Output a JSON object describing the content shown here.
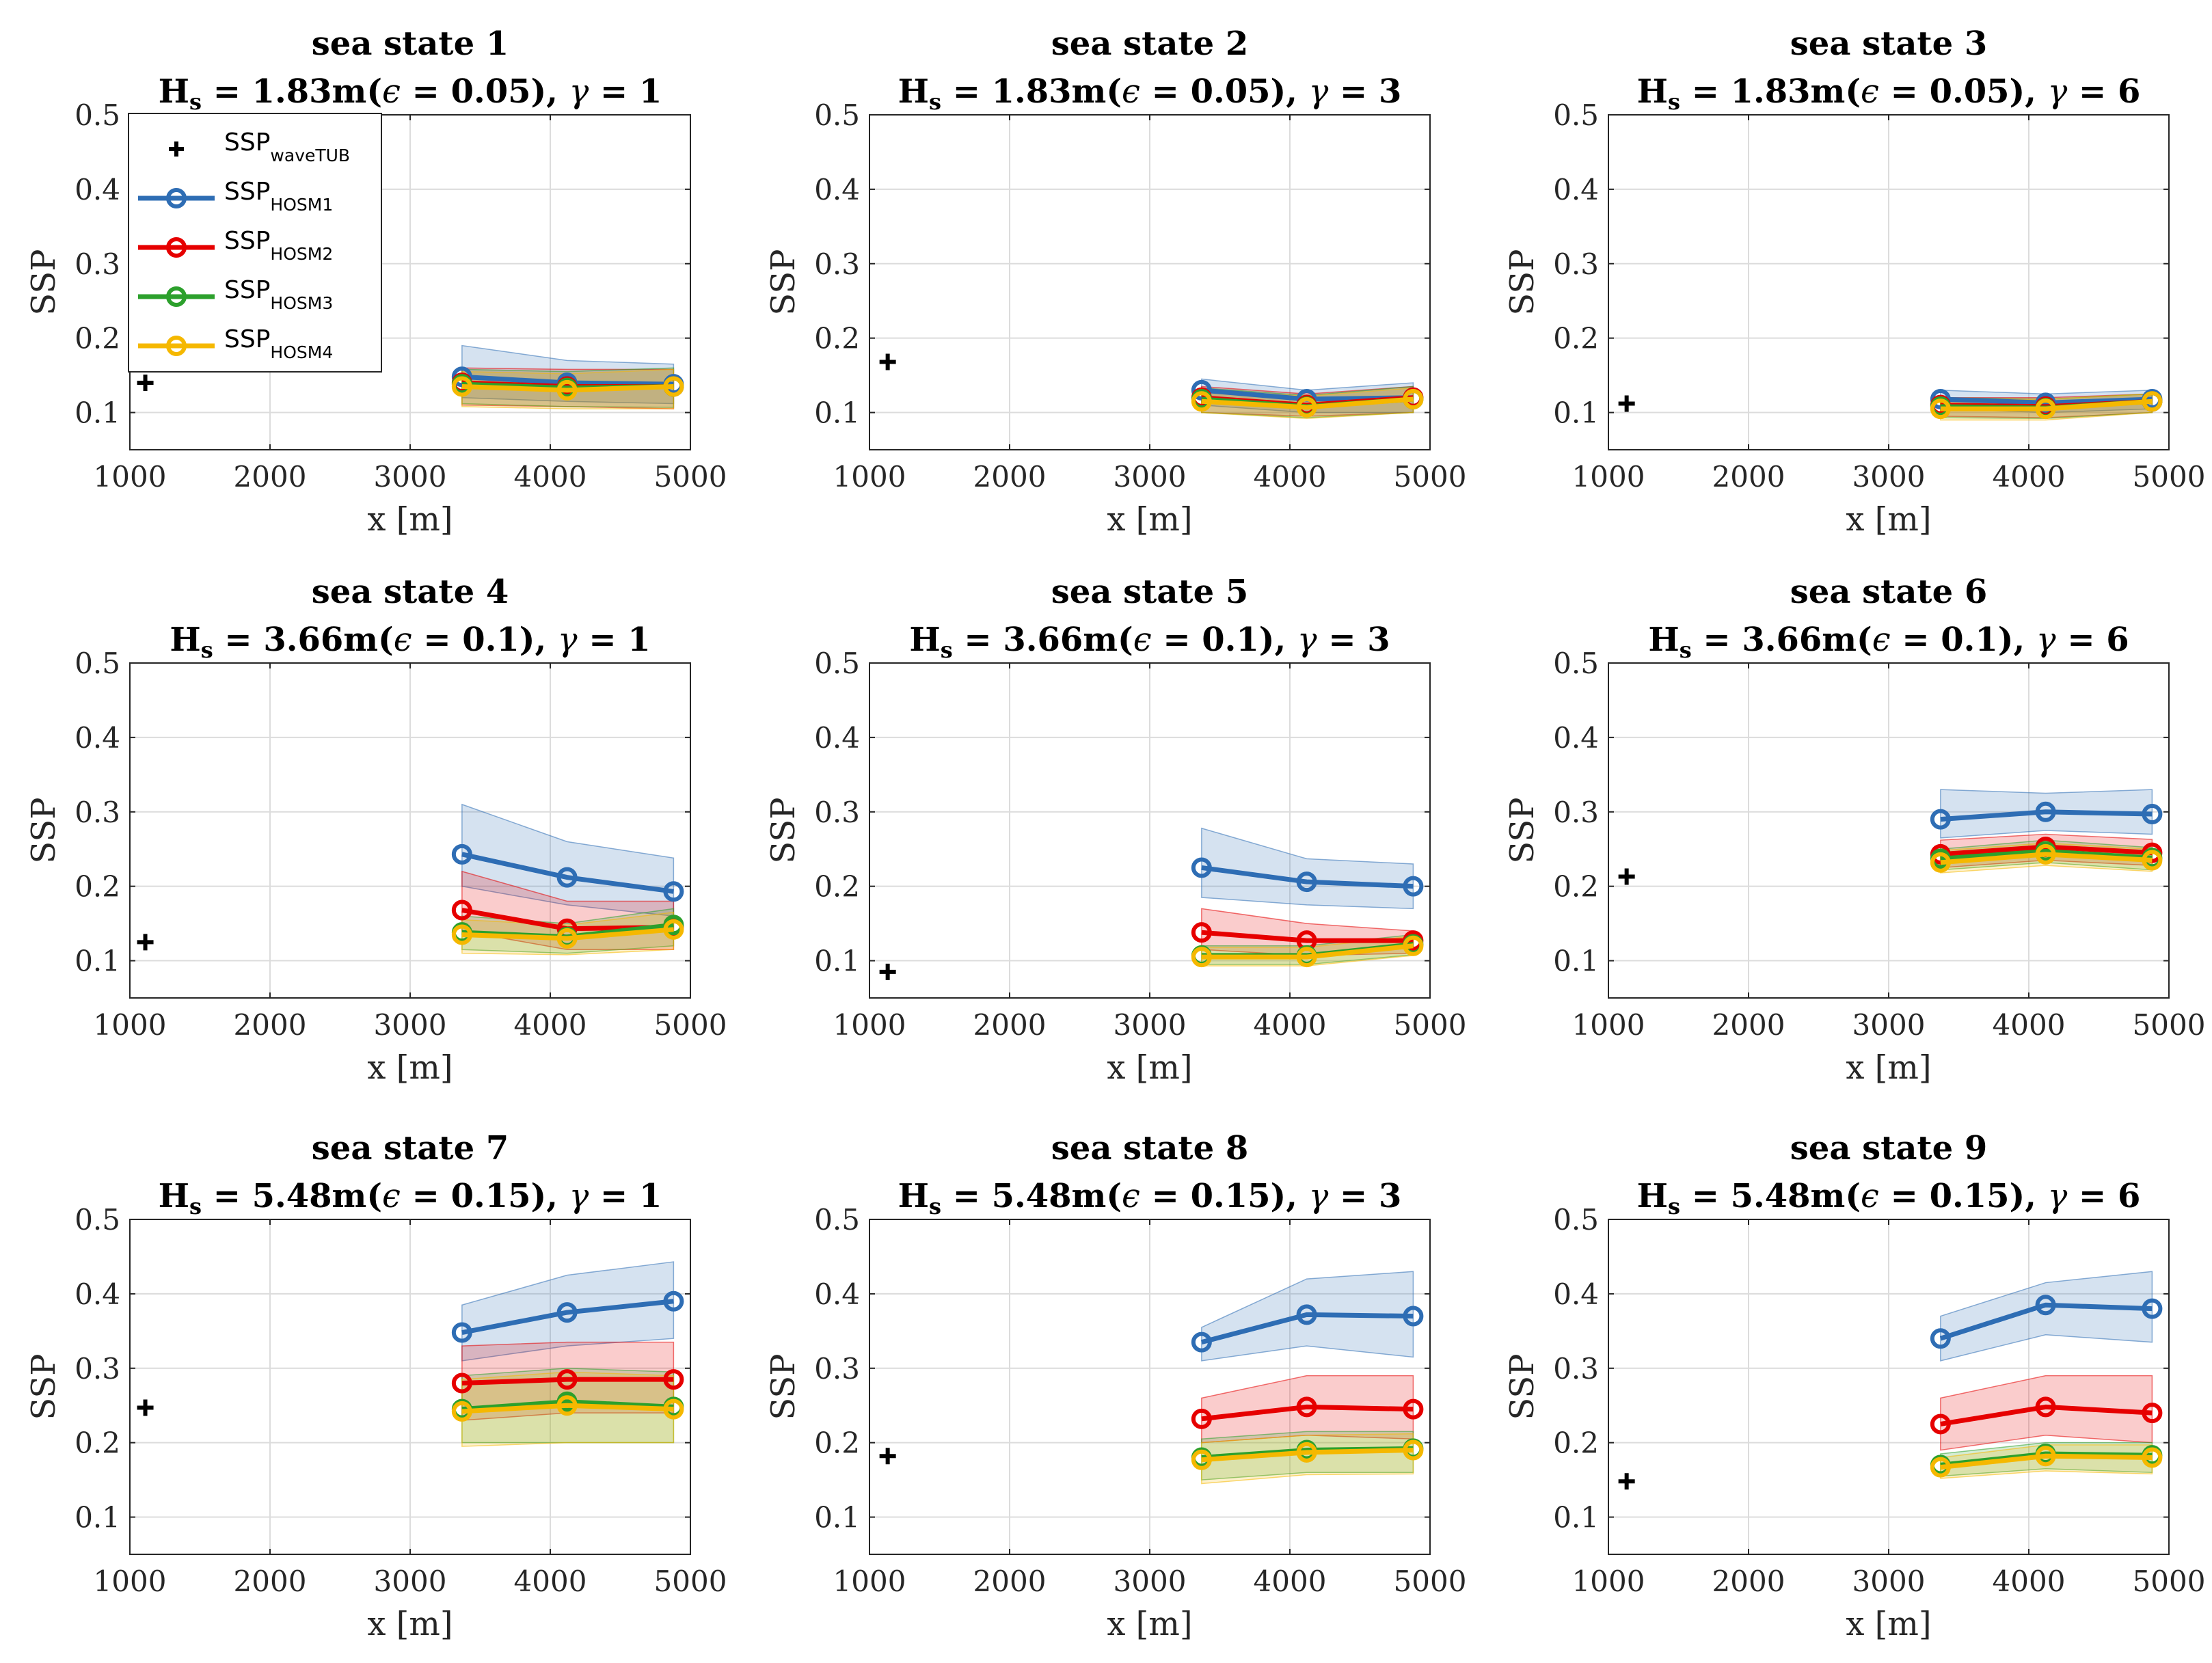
{
  "figure": {
    "background": "#ffffff"
  },
  "legend": {
    "entries": [
      {
        "name": "SSP",
        "sub": "waveTUB",
        "marker": "plus",
        "color": "#000000"
      },
      {
        "name": "SSP",
        "sub": "HOSM1",
        "marker": "circle-line",
        "color": "#2E6DB4"
      },
      {
        "name": "SSP",
        "sub": "HOSM2",
        "marker": "circle-line",
        "color": "#E60000"
      },
      {
        "name": "SSP",
        "sub": "HOSM3",
        "marker": "circle-line",
        "color": "#2CA02C"
      },
      {
        "name": "SSP",
        "sub": "HOSM4",
        "marker": "circle-line",
        "color": "#F5B800"
      }
    ]
  },
  "chart_data": [
    {
      "type": "line",
      "title": "sea state 1",
      "subtitle": {
        "h": "H",
        "sub": "s",
        "value": " = 1.83m(",
        "eps": "ϵ",
        "eps_val": " = 0.05), ",
        "gamma": "γ",
        "gamma_val": " = 1"
      },
      "xlabel": "x [m]",
      "ylabel": "SSP",
      "xlim": [
        1000,
        5000
      ],
      "ylim": [
        0.05,
        0.5
      ],
      "xticks": [
        "1000",
        "2000",
        "3000",
        "4000",
        "5000"
      ],
      "yticks": [
        "0.1",
        "0.2",
        "0.3",
        "0.4",
        "0.5"
      ],
      "grid": true,
      "legend_position": "top-left",
      "wavetub": {
        "x": 1110,
        "y": 0.14
      },
      "x": [
        3370,
        4120,
        4880
      ],
      "series": [
        {
          "name": "SSPHOSM1",
          "values": [
            0.148,
            0.14,
            0.138
          ],
          "lower": [
            0.12,
            0.115,
            0.112
          ],
          "upper": [
            0.19,
            0.17,
            0.165
          ]
        },
        {
          "name": "SSPHOSM2",
          "values": [
            0.14,
            0.135,
            0.135
          ],
          "lower": [
            0.11,
            0.108,
            0.105
          ],
          "upper": [
            0.16,
            0.158,
            0.158
          ]
        },
        {
          "name": "SSPHOSM3",
          "values": [
            0.138,
            0.133,
            0.135
          ],
          "lower": [
            0.112,
            0.108,
            0.107
          ],
          "upper": [
            0.158,
            0.155,
            0.16
          ]
        },
        {
          "name": "SSPHOSM4",
          "values": [
            0.135,
            0.13,
            0.135
          ],
          "lower": [
            0.108,
            0.105,
            0.105
          ],
          "upper": [
            0.155,
            0.152,
            0.158
          ]
        }
      ]
    },
    {
      "type": "line",
      "title": "sea state 2",
      "subtitle": {
        "h": "H",
        "sub": "s",
        "value": " = 1.83m(",
        "eps": "ϵ",
        "eps_val": " = 0.05), ",
        "gamma": "γ",
        "gamma_val": " = 3"
      },
      "xlabel": "x [m]",
      "ylabel": "SSP",
      "xlim": [
        1000,
        5000
      ],
      "ylim": [
        0.05,
        0.5
      ],
      "xticks": [
        "1000",
        "2000",
        "3000",
        "4000",
        "5000"
      ],
      "yticks": [
        "0.1",
        "0.2",
        "0.3",
        "0.4",
        "0.5"
      ],
      "grid": true,
      "wavetub": {
        "x": 1130,
        "y": 0.168
      },
      "x": [
        3370,
        4120,
        4880
      ],
      "series": [
        {
          "name": "SSPHOSM1",
          "values": [
            0.13,
            0.118,
            0.12
          ],
          "lower": [
            0.11,
            0.1,
            0.1
          ],
          "upper": [
            0.145,
            0.13,
            0.14
          ]
        },
        {
          "name": "SSPHOSM2",
          "values": [
            0.12,
            0.11,
            0.12
          ],
          "lower": [
            0.1,
            0.095,
            0.1
          ],
          "upper": [
            0.135,
            0.125,
            0.135
          ]
        },
        {
          "name": "SSPHOSM3",
          "values": [
            0.118,
            0.108,
            0.118
          ],
          "lower": [
            0.1,
            0.093,
            0.1
          ],
          "upper": [
            0.133,
            0.123,
            0.135
          ]
        },
        {
          "name": "SSPHOSM4",
          "values": [
            0.115,
            0.107,
            0.118
          ],
          "lower": [
            0.1,
            0.092,
            0.1
          ],
          "upper": [
            0.13,
            0.122,
            0.133
          ]
        }
      ]
    },
    {
      "type": "line",
      "title": "sea state 3",
      "subtitle": {
        "h": "H",
        "sub": "s",
        "value": " = 1.83m(",
        "eps": "ϵ",
        "eps_val": " = 0.05), ",
        "gamma": "γ",
        "gamma_val": " = 6"
      },
      "xlabel": "x [m]",
      "ylabel": "SSP",
      "xlim": [
        1000,
        5000
      ],
      "ylim": [
        0.05,
        0.5
      ],
      "xticks": [
        "1000",
        "2000",
        "3000",
        "4000",
        "5000"
      ],
      "yticks": [
        "0.1",
        "0.2",
        "0.3",
        "0.4",
        "0.5"
      ],
      "grid": true,
      "wavetub": {
        "x": 1130,
        "y": 0.112
      },
      "x": [
        3370,
        4120,
        4880
      ],
      "series": [
        {
          "name": "SSPHOSM1",
          "values": [
            0.118,
            0.113,
            0.118
          ],
          "lower": [
            0.105,
            0.1,
            0.105
          ],
          "upper": [
            0.13,
            0.125,
            0.13
          ]
        },
        {
          "name": "SSPHOSM2",
          "values": [
            0.11,
            0.108,
            0.115
          ],
          "lower": [
            0.095,
            0.093,
            0.1
          ],
          "upper": [
            0.12,
            0.12,
            0.125
          ]
        },
        {
          "name": "SSPHOSM3",
          "values": [
            0.108,
            0.106,
            0.115
          ],
          "lower": [
            0.093,
            0.092,
            0.1
          ],
          "upper": [
            0.12,
            0.118,
            0.125
          ]
        },
        {
          "name": "SSPHOSM4",
          "values": [
            0.105,
            0.105,
            0.115
          ],
          "lower": [
            0.09,
            0.09,
            0.1
          ],
          "upper": [
            0.118,
            0.118,
            0.125
          ]
        }
      ]
    },
    {
      "type": "line",
      "title": "sea state 4",
      "subtitle": {
        "h": "H",
        "sub": "s",
        "value": " = 3.66m(",
        "eps": "ϵ",
        "eps_val": " = 0.1), ",
        "gamma": "γ",
        "gamma_val": " = 1"
      },
      "xlabel": "x [m]",
      "ylabel": "SSP",
      "xlim": [
        1000,
        5000
      ],
      "ylim": [
        0.05,
        0.5
      ],
      "xticks": [
        "1000",
        "2000",
        "3000",
        "4000",
        "5000"
      ],
      "yticks": [
        "0.1",
        "0.2",
        "0.3",
        "0.4",
        "0.5"
      ],
      "grid": true,
      "wavetub": {
        "x": 1110,
        "y": 0.125
      },
      "x": [
        3370,
        4120,
        4880
      ],
      "series": [
        {
          "name": "SSPHOSM1",
          "values": [
            0.243,
            0.212,
            0.193
          ],
          "lower": [
            0.2,
            0.175,
            0.16
          ],
          "upper": [
            0.31,
            0.26,
            0.238
          ]
        },
        {
          "name": "SSPHOSM2",
          "values": [
            0.168,
            0.143,
            0.145
          ],
          "lower": [
            0.14,
            0.115,
            0.115
          ],
          "upper": [
            0.22,
            0.18,
            0.18
          ]
        },
        {
          "name": "SSPHOSM3",
          "values": [
            0.138,
            0.132,
            0.148
          ],
          "lower": [
            0.115,
            0.11,
            0.12
          ],
          "upper": [
            0.16,
            0.15,
            0.17
          ]
        },
        {
          "name": "SSPHOSM4",
          "values": [
            0.135,
            0.13,
            0.142
          ],
          "lower": [
            0.11,
            0.108,
            0.115
          ],
          "upper": [
            0.155,
            0.148,
            0.165
          ]
        }
      ]
    },
    {
      "type": "line",
      "title": "sea state 5",
      "subtitle": {
        "h": "H",
        "sub": "s",
        "value": " = 3.66m(",
        "eps": "ϵ",
        "eps_val": " = 0.1), ",
        "gamma": "γ",
        "gamma_val": " = 3"
      },
      "xlabel": "x [m]",
      "ylabel": "SSP",
      "xlim": [
        1000,
        5000
      ],
      "ylim": [
        0.05,
        0.5
      ],
      "xticks": [
        "1000",
        "2000",
        "3000",
        "4000",
        "5000"
      ],
      "yticks": [
        "0.1",
        "0.2",
        "0.3",
        "0.4",
        "0.5"
      ],
      "grid": true,
      "wavetub": {
        "x": 1130,
        "y": 0.085
      },
      "x": [
        3370,
        4120,
        4880
      ],
      "series": [
        {
          "name": "SSPHOSM1",
          "values": [
            0.225,
            0.206,
            0.2
          ],
          "lower": [
            0.185,
            0.175,
            0.17
          ],
          "upper": [
            0.278,
            0.237,
            0.23
          ]
        },
        {
          "name": "SSPHOSM2",
          "values": [
            0.138,
            0.127,
            0.127
          ],
          "lower": [
            0.115,
            0.107,
            0.11
          ],
          "upper": [
            0.17,
            0.15,
            0.14
          ]
        },
        {
          "name": "SSPHOSM3",
          "values": [
            0.107,
            0.107,
            0.122
          ],
          "lower": [
            0.095,
            0.095,
            0.108
          ],
          "upper": [
            0.12,
            0.12,
            0.135
          ]
        },
        {
          "name": "SSPHOSM4",
          "values": [
            0.105,
            0.105,
            0.12
          ],
          "lower": [
            0.093,
            0.093,
            0.107
          ],
          "upper": [
            0.118,
            0.118,
            0.133
          ]
        }
      ]
    },
    {
      "type": "line",
      "title": "sea state 6",
      "subtitle": {
        "h": "H",
        "sub": "s",
        "value": " = 3.66m(",
        "eps": "ϵ",
        "eps_val": " = 0.1), ",
        "gamma": "γ",
        "gamma_val": " = 6"
      },
      "xlabel": "x [m]",
      "ylabel": "SSP",
      "xlim": [
        1000,
        5000
      ],
      "ylim": [
        0.05,
        0.5
      ],
      "xticks": [
        "1000",
        "2000",
        "3000",
        "4000",
        "5000"
      ],
      "yticks": [
        "0.1",
        "0.2",
        "0.3",
        "0.4",
        "0.5"
      ],
      "grid": true,
      "wavetub": {
        "x": 1130,
        "y": 0.213
      },
      "x": [
        3370,
        4120,
        4880
      ],
      "series": [
        {
          "name": "SSPHOSM1",
          "values": [
            0.29,
            0.3,
            0.297
          ],
          "lower": [
            0.265,
            0.275,
            0.27
          ],
          "upper": [
            0.33,
            0.325,
            0.33
          ]
        },
        {
          "name": "SSPHOSM2",
          "values": [
            0.243,
            0.253,
            0.245
          ],
          "lower": [
            0.225,
            0.235,
            0.228
          ],
          "upper": [
            0.262,
            0.27,
            0.263
          ]
        },
        {
          "name": "SSPHOSM3",
          "values": [
            0.237,
            0.247,
            0.238
          ],
          "lower": [
            0.222,
            0.232,
            0.222
          ],
          "upper": [
            0.25,
            0.262,
            0.252
          ]
        },
        {
          "name": "SSPHOSM4",
          "values": [
            0.232,
            0.243,
            0.235
          ],
          "lower": [
            0.218,
            0.228,
            0.22
          ],
          "upper": [
            0.248,
            0.258,
            0.25
          ]
        }
      ]
    },
    {
      "type": "line",
      "title": "sea state 7",
      "subtitle": {
        "h": "H",
        "sub": "s",
        "value": " = 5.48m(",
        "eps": "ϵ",
        "eps_val": " = 0.15), ",
        "gamma": "γ",
        "gamma_val": " = 1"
      },
      "xlabel": "x [m]",
      "ylabel": "SSP",
      "xlim": [
        1000,
        5000
      ],
      "ylim": [
        0.05,
        0.5
      ],
      "xticks": [
        "1000",
        "2000",
        "3000",
        "4000",
        "5000"
      ],
      "yticks": [
        "0.1",
        "0.2",
        "0.3",
        "0.4",
        "0.5"
      ],
      "grid": true,
      "wavetub": {
        "x": 1110,
        "y": 0.247
      },
      "x": [
        3370,
        4120,
        4880
      ],
      "series": [
        {
          "name": "SSPHOSM1",
          "values": [
            0.348,
            0.375,
            0.39
          ],
          "lower": [
            0.31,
            0.33,
            0.34
          ],
          "upper": [
            0.385,
            0.425,
            0.443
          ]
        },
        {
          "name": "SSPHOSM2",
          "values": [
            0.28,
            0.285,
            0.285
          ],
          "lower": [
            0.23,
            0.24,
            0.24
          ],
          "upper": [
            0.33,
            0.335,
            0.335
          ]
        },
        {
          "name": "SSPHOSM3",
          "values": [
            0.245,
            0.255,
            0.248
          ],
          "lower": [
            0.2,
            0.2,
            0.2
          ],
          "upper": [
            0.29,
            0.3,
            0.295
          ]
        },
        {
          "name": "SSPHOSM4",
          "values": [
            0.242,
            0.25,
            0.245
          ],
          "lower": [
            0.195,
            0.2,
            0.2
          ],
          "upper": [
            0.285,
            0.295,
            0.29
          ]
        }
      ]
    },
    {
      "type": "line",
      "title": "sea state 8",
      "subtitle": {
        "h": "H",
        "sub": "s",
        "value": " = 5.48m(",
        "eps": "ϵ",
        "eps_val": " = 0.15), ",
        "gamma": "γ",
        "gamma_val": " = 3"
      },
      "xlabel": "x [m]",
      "ylabel": "SSP",
      "xlim": [
        1000,
        5000
      ],
      "ylim": [
        0.05,
        0.5
      ],
      "xticks": [
        "1000",
        "2000",
        "3000",
        "4000",
        "5000"
      ],
      "yticks": [
        "0.1",
        "0.2",
        "0.3",
        "0.4",
        "0.5"
      ],
      "grid": true,
      "wavetub": {
        "x": 1130,
        "y": 0.182
      },
      "x": [
        3370,
        4120,
        4880
      ],
      "series": [
        {
          "name": "SSPHOSM1",
          "values": [
            0.335,
            0.372,
            0.37
          ],
          "lower": [
            0.31,
            0.33,
            0.315
          ],
          "upper": [
            0.355,
            0.42,
            0.43
          ]
        },
        {
          "name": "SSPHOSM2",
          "values": [
            0.232,
            0.248,
            0.245
          ],
          "lower": [
            0.2,
            0.21,
            0.205
          ],
          "upper": [
            0.26,
            0.29,
            0.29
          ]
        },
        {
          "name": "SSPHOSM3",
          "values": [
            0.18,
            0.19,
            0.192
          ],
          "lower": [
            0.15,
            0.16,
            0.16
          ],
          "upper": [
            0.205,
            0.215,
            0.215
          ]
        },
        {
          "name": "SSPHOSM4",
          "values": [
            0.177,
            0.187,
            0.19
          ],
          "lower": [
            0.145,
            0.157,
            0.158
          ],
          "upper": [
            0.2,
            0.21,
            0.212
          ]
        }
      ]
    },
    {
      "type": "line",
      "title": "sea state 9",
      "subtitle": {
        "h": "H",
        "sub": "s",
        "value": " = 5.48m(",
        "eps": "ϵ",
        "eps_val": " = 0.15), ",
        "gamma": "γ",
        "gamma_val": " = 6"
      },
      "xlabel": "x [m]",
      "ylabel": "SSP",
      "xlim": [
        1000,
        5000
      ],
      "ylim": [
        0.05,
        0.5
      ],
      "xticks": [
        "1000",
        "2000",
        "3000",
        "4000",
        "5000"
      ],
      "yticks": [
        "0.1",
        "0.2",
        "0.3",
        "0.4",
        "0.5"
      ],
      "grid": true,
      "wavetub": {
        "x": 1130,
        "y": 0.148
      },
      "x": [
        3370,
        4120,
        4880
      ],
      "series": [
        {
          "name": "SSPHOSM1",
          "values": [
            0.34,
            0.385,
            0.38
          ],
          "lower": [
            0.31,
            0.345,
            0.335
          ],
          "upper": [
            0.37,
            0.415,
            0.43
          ]
        },
        {
          "name": "SSPHOSM2",
          "values": [
            0.225,
            0.248,
            0.24
          ],
          "lower": [
            0.19,
            0.21,
            0.2
          ],
          "upper": [
            0.26,
            0.29,
            0.29
          ]
        },
        {
          "name": "SSPHOSM3",
          "values": [
            0.17,
            0.185,
            0.183
          ],
          "lower": [
            0.155,
            0.165,
            0.16
          ],
          "upper": [
            0.185,
            0.2,
            0.2
          ]
        },
        {
          "name": "SSPHOSM4",
          "values": [
            0.167,
            0.182,
            0.18
          ],
          "lower": [
            0.152,
            0.162,
            0.158
          ],
          "upper": [
            0.18,
            0.197,
            0.197
          ]
        }
      ]
    }
  ]
}
